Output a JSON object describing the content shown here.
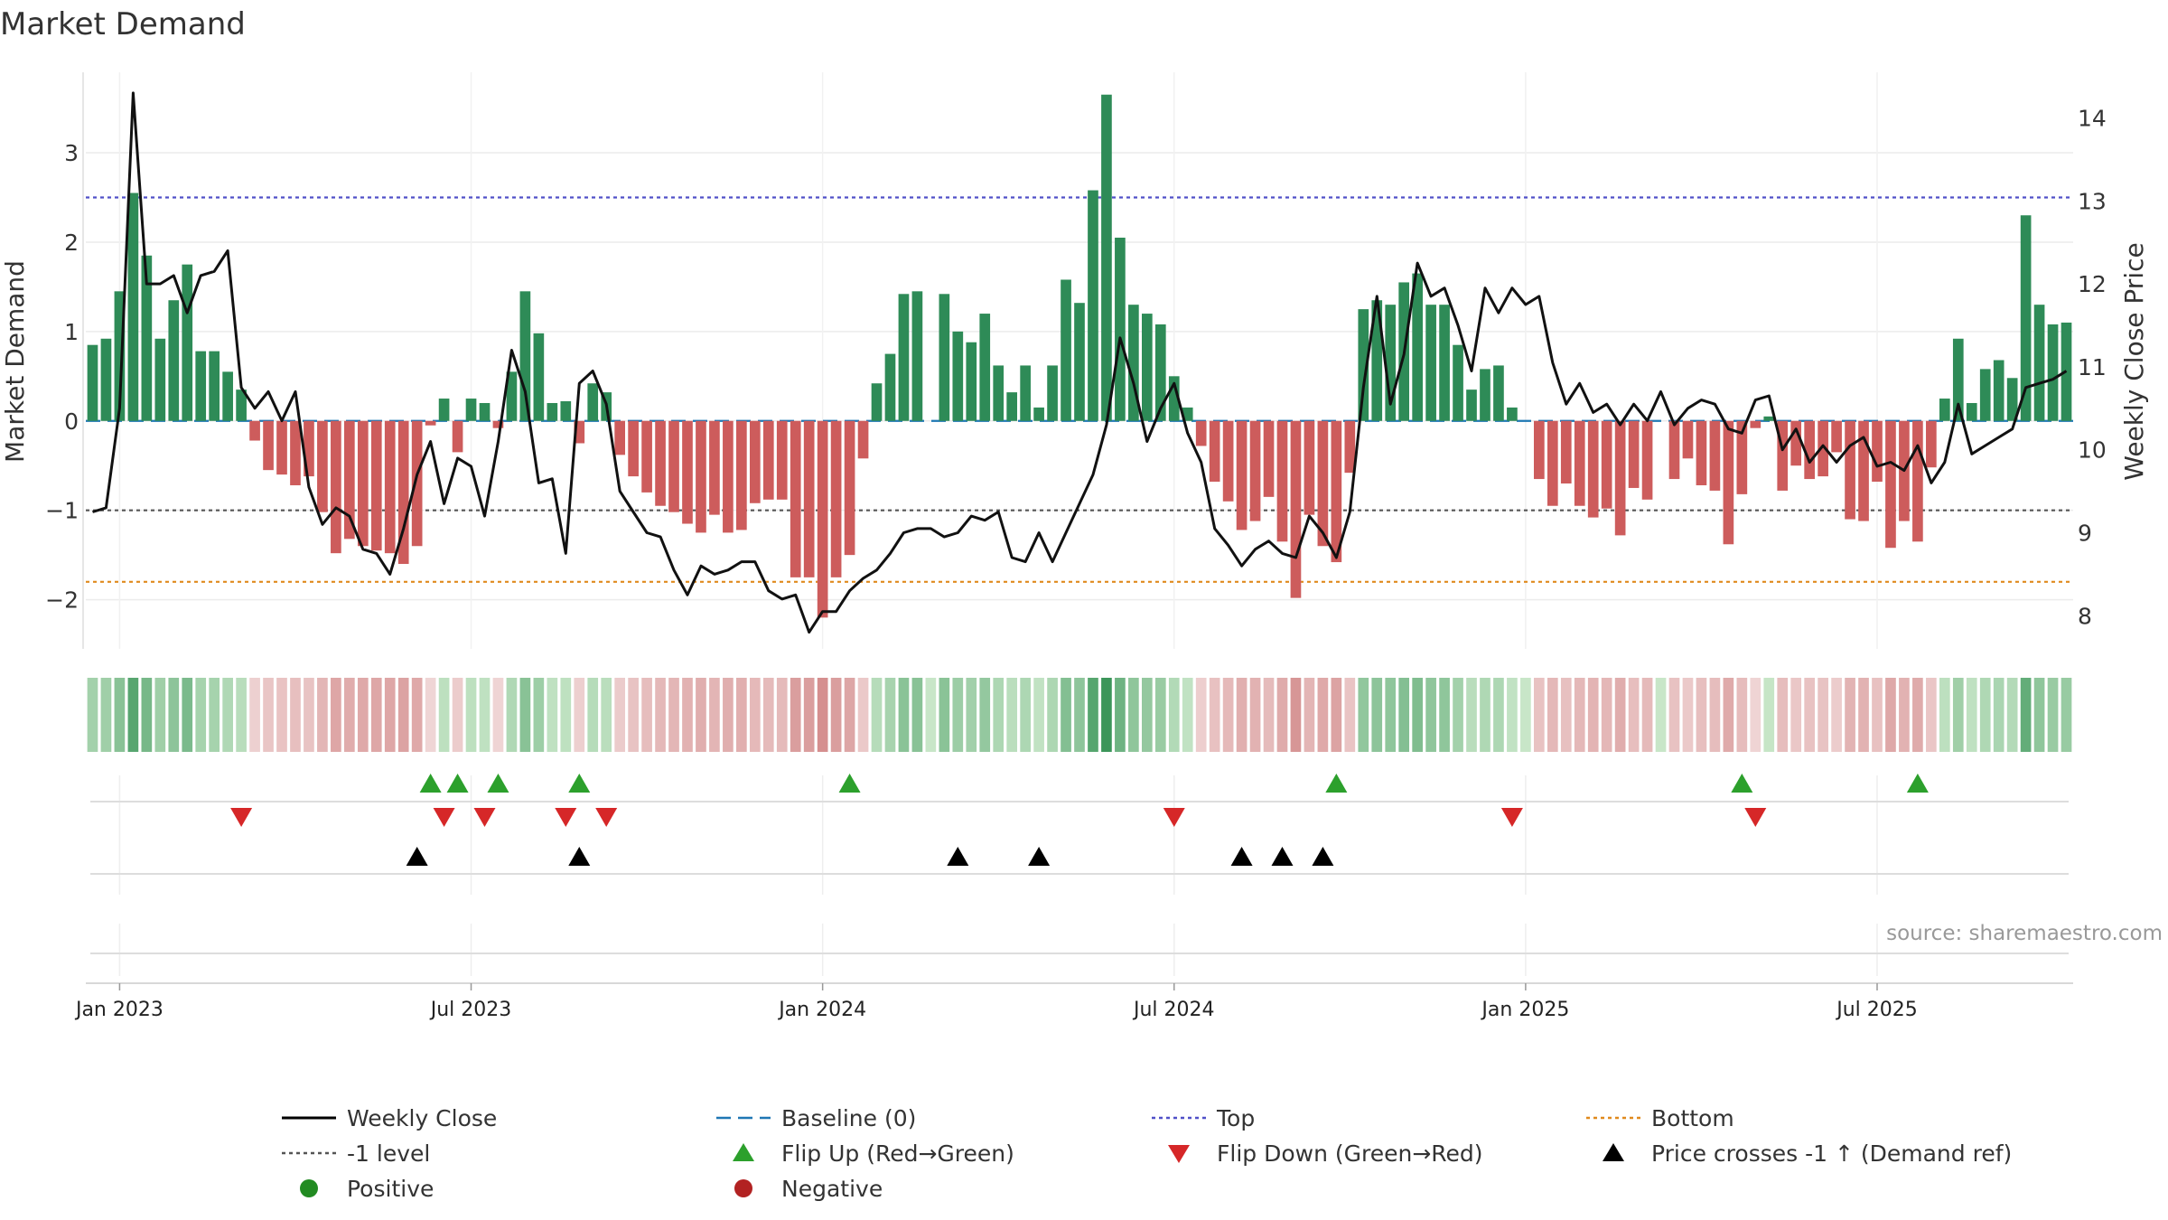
{
  "chart_data": {
    "type": "bar",
    "title": "Market Demand",
    "ylabel": "Market Demand",
    "ylabel_right": "Weekly Close Price",
    "ylim": [
      -2.55,
      3.9
    ],
    "ylim_right": [
      7.6,
      14.55
    ],
    "yticks": [
      -2,
      -1,
      0,
      1,
      2,
      3
    ],
    "yticks_right": [
      8,
      9,
      10,
      11,
      12,
      13,
      14
    ],
    "x_tick_labels": [
      "Jan 2023",
      "Jul 2023",
      "Jan 2024",
      "Jul 2024",
      "Jan 2025",
      "Jul 2025"
    ],
    "x_tick_weeks": [
      0,
      26,
      52,
      78,
      104,
      130
    ],
    "first_week_index": -2,
    "levels": {
      "top": 2.5,
      "minus_one": -1,
      "bottom": -1.8,
      "baseline": 0
    },
    "series": [
      {
        "name": "Market Demand",
        "values": [
          0.85,
          0.92,
          1.45,
          2.55,
          1.85,
          0.92,
          1.35,
          1.75,
          0.78,
          0.78,
          0.55,
          0.35,
          -0.22,
          -0.55,
          -0.6,
          -0.72,
          -0.62,
          -1.02,
          -1.48,
          -1.32,
          -1.4,
          -1.45,
          -1.48,
          -1.6,
          -1.4,
          -0.05,
          0.25,
          -0.35,
          0.25,
          0.2,
          -0.08,
          0.55,
          1.45,
          0.98,
          0.2,
          0.22,
          -0.25,
          0.42,
          0.32,
          -0.38,
          -0.62,
          -0.8,
          -0.95,
          -1.02,
          -1.15,
          -1.25,
          -1.05,
          -1.25,
          -1.22,
          -0.92,
          -0.88,
          -0.88,
          -1.75,
          -1.75,
          -2.2,
          -1.75,
          -1.5,
          -0.42,
          0.42,
          0.75,
          1.42,
          1.45,
          0,
          1.42,
          1.0,
          0.88,
          1.2,
          0.62,
          0.32,
          0.62,
          0.15,
          0.62,
          1.58,
          1.32,
          2.58,
          3.65,
          2.05,
          1.3,
          1.2,
          1.08,
          0.5,
          0.15,
          -0.28,
          -0.68,
          -0.9,
          -1.22,
          -1.12,
          -0.85,
          -1.35,
          -1.98,
          -1.05,
          -1.4,
          -1.58,
          -0.58,
          1.25,
          1.35,
          1.3,
          1.55,
          1.65,
          1.3,
          1.3,
          0.85,
          0.35,
          0.58,
          0.62,
          0.15,
          0,
          -0.65,
          -0.95,
          -0.7,
          -0.95,
          -1.08,
          -0.98,
          -1.28,
          -0.75,
          -0.88,
          0,
          -0.65,
          -0.42,
          -0.72,
          -0.78,
          -1.38,
          -0.82,
          -0.08,
          0.05,
          -0.78,
          -0.5,
          -0.65,
          -0.62,
          -0.35,
          -1.1,
          -1.12,
          -0.68,
          -1.42,
          -1.12,
          -1.35,
          -0.52,
          0.25,
          0.92,
          0.2,
          0.58,
          0.68,
          0.48,
          2.3,
          1.3,
          1.08,
          1.1
        ]
      },
      {
        "name": "Weekly Close",
        "values": [
          9.25,
          9.3,
          10.5,
          14.3,
          12.0,
          12.0,
          12.1,
          11.65,
          12.1,
          12.15,
          12.4,
          10.75,
          10.5,
          10.7,
          10.35,
          10.7,
          9.55,
          9.1,
          9.3,
          9.2,
          8.8,
          8.75,
          8.5,
          9.05,
          9.7,
          10.1,
          9.35,
          9.9,
          9.8,
          9.2,
          10.1,
          11.2,
          10.7,
          9.6,
          9.65,
          8.75,
          10.8,
          10.95,
          10.55,
          9.5,
          9.25,
          9.0,
          8.95,
          8.55,
          8.25,
          8.6,
          8.5,
          8.55,
          8.65,
          8.65,
          8.3,
          8.2,
          8.25,
          7.8,
          8.05,
          8.05,
          8.3,
          8.45,
          8.55,
          8.75,
          9.0,
          9.05,
          9.05,
          8.95,
          9.0,
          9.2,
          9.15,
          9.25,
          8.7,
          8.65,
          9.0,
          8.65,
          9.0,
          9.35,
          9.7,
          10.3,
          11.35,
          10.8,
          10.1,
          10.5,
          10.8,
          10.2,
          9.85,
          9.05,
          8.85,
          8.6,
          8.8,
          8.9,
          8.75,
          8.7,
          9.2,
          9.0,
          8.7,
          9.25,
          10.75,
          11.85,
          10.55,
          11.15,
          12.25,
          11.85,
          11.95,
          11.5,
          10.95,
          11.95,
          11.65,
          11.95,
          11.75,
          11.85,
          11.05,
          10.55,
          10.8,
          10.45,
          10.55,
          10.3,
          10.55,
          10.35,
          10.7,
          10.3,
          10.5,
          10.6,
          10.55,
          10.25,
          10.2,
          10.6,
          10.65,
          10.0,
          10.25,
          9.85,
          10.05,
          9.85,
          10.05,
          10.15,
          9.8,
          9.85,
          9.75,
          10.05,
          9.6,
          9.85,
          10.55,
          9.95,
          10.05,
          10.15,
          10.25,
          10.75,
          10.8,
          10.85,
          10.95
        ]
      }
    ],
    "flip_up_weeks": [
      23,
      25,
      28,
      34,
      54,
      90,
      120,
      133
    ],
    "flip_down_weeks": [
      9,
      24,
      27,
      33,
      36,
      78,
      103,
      121
    ],
    "price_cross_weeks": [
      22,
      34,
      62,
      68,
      83,
      86,
      89
    ],
    "annotation": "source: sharemaestro.com",
    "legend": [
      {
        "label": "Weekly Close",
        "symbol": "line",
        "color": "#000000"
      },
      {
        "label": "Baseline (0)",
        "symbol": "dash",
        "color": "#1f77b4"
      },
      {
        "label": "Top",
        "symbol": "dot",
        "color": "#5050c8"
      },
      {
        "label": "Bottom",
        "symbol": "dot",
        "color": "#e08a1e"
      },
      {
        "label": "-1 level",
        "symbol": "dot",
        "color": "#555555"
      },
      {
        "label": "Flip Up (Red→Green)",
        "symbol": "tri-up",
        "color": "#2ca02c"
      },
      {
        "label": "Flip Down (Green→Red)",
        "symbol": "tri-down",
        "color": "#d62728"
      },
      {
        "label": "Price crosses -1 ↑ (Demand ref)",
        "symbol": "tri-up",
        "color": "#000000"
      },
      {
        "label": "Positive",
        "symbol": "circle",
        "color": "#228b22"
      },
      {
        "label": "Negative",
        "symbol": "circle",
        "color": "#b22222"
      }
    ],
    "colors": {
      "positive": "#2e8b57",
      "negative": "#cd5c5c",
      "price": "#111111"
    }
  }
}
